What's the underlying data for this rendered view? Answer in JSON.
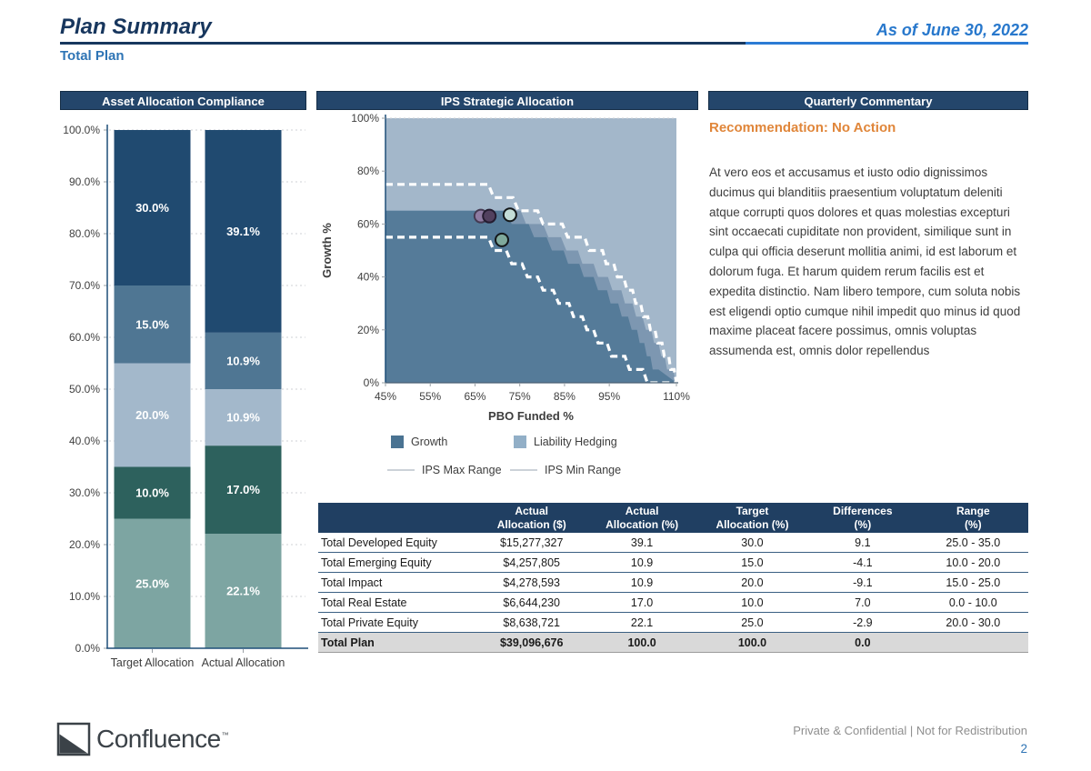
{
  "header": {
    "title": "Plan Summary",
    "subtitle": "Total Plan",
    "as_of": "As of June 30, 2022"
  },
  "panels": {
    "allocation_title": "Asset Allocation Compliance",
    "ips_title": "IPS Strategic Allocation",
    "commentary_title": "Quarterly Commentary"
  },
  "commentary": {
    "recommendation": "Recommendation: No Action",
    "body": "At vero eos et accusamus et iusto odio dignissimos ducimus qui blanditiis praesentium voluptatum deleniti atque corrupti quos dolores et quas molestias excepturi sint occaecati cupiditate non provident, similique sunt in culpa qui officia deserunt mollitia animi, id est laborum et dolorum fuga. Et harum quidem rerum facilis est et expedita distinctio. Nam libero tempore, cum soluta nobis est eligendi optio cumque nihil impedit quo minus id quod maxime placeat facere possimus, omnis voluptas assumenda est, omnis dolor repellendus"
  },
  "chart_data": [
    {
      "type": "bar",
      "title": "Asset Allocation Compliance",
      "stacked": true,
      "categories": [
        "Target Allocation",
        "Actual Allocation"
      ],
      "series": [
        {
          "color": "#7da5a2",
          "values": [
            25.0,
            22.1
          ],
          "labels": [
            "25.0%",
            "22.1%"
          ]
        },
        {
          "color": "#2d615d",
          "values": [
            10.0,
            17.0
          ],
          "labels": [
            "10.0%",
            "17.0%"
          ]
        },
        {
          "color": "#a3b8cb",
          "values": [
            20.0,
            10.9
          ],
          "labels": [
            "20.0%",
            "10.9%"
          ]
        },
        {
          "color": "#4f7693",
          "values": [
            15.0,
            10.9
          ],
          "labels": [
            "15.0%",
            "10.9%"
          ]
        },
        {
          "color": "#204a70",
          "values": [
            30.0,
            39.1
          ],
          "labels": [
            "30.0%",
            "39.1%"
          ]
        }
      ],
      "ylim": [
        0,
        100
      ],
      "ytick_labels": [
        "0.0%",
        "10.0%",
        "20.0%",
        "30.0%",
        "40.0%",
        "50.0%",
        "60.0%",
        "70.0%",
        "80.0%",
        "90.0%",
        "100.0%"
      ]
    },
    {
      "type": "area",
      "title": "IPS Strategic Allocation",
      "xlabel": "PBO Funded %",
      "ylabel": "Growth %",
      "xlim": [
        45,
        110
      ],
      "ylim": [
        0,
        100
      ],
      "xtick_values": [
        45,
        55,
        65,
        75,
        85,
        95,
        110
      ],
      "xtick_labels": [
        "45%",
        "55%",
        "65%",
        "75%",
        "85%",
        "95%",
        "110%"
      ],
      "ytick_values": [
        0,
        20,
        40,
        60,
        80,
        100
      ],
      "ytick_labels": [
        "0%",
        "20%",
        "40%",
        "60%",
        "80%",
        "100%"
      ],
      "colors": {
        "liability": "#a3b7ca",
        "mid": "#7d97b1",
        "growth": "#557b99"
      },
      "growth_boundary": [
        [
          45,
          65
        ],
        [
          72,
          65
        ],
        [
          73.2,
          60
        ],
        [
          77,
          60
        ],
        [
          78.2,
          55
        ],
        [
          81,
          55
        ],
        [
          82.2,
          50
        ],
        [
          84.8,
          50
        ],
        [
          85.8,
          45
        ],
        [
          88.3,
          45
        ],
        [
          89.3,
          40
        ],
        [
          91.5,
          40
        ],
        [
          92.5,
          35
        ],
        [
          94.5,
          35
        ],
        [
          95.3,
          30
        ],
        [
          97,
          30
        ],
        [
          97.8,
          25
        ],
        [
          99.2,
          25
        ],
        [
          100,
          20
        ],
        [
          101.2,
          20
        ],
        [
          101.8,
          15
        ],
        [
          102.8,
          15
        ],
        [
          103.4,
          10
        ],
        [
          104.2,
          10
        ],
        [
          104.7,
          5
        ],
        [
          106,
          5
        ],
        [
          110,
          0
        ]
      ],
      "mid_boundary": [
        [
          45,
          65
        ],
        [
          75.2,
          65
        ],
        [
          76.4,
          60
        ],
        [
          80.2,
          60
        ],
        [
          81.4,
          55
        ],
        [
          84.2,
          55
        ],
        [
          85.4,
          50
        ],
        [
          88,
          50
        ],
        [
          89,
          45
        ],
        [
          91.5,
          45
        ],
        [
          92.5,
          40
        ],
        [
          94.7,
          40
        ],
        [
          95.7,
          35
        ],
        [
          97.7,
          35
        ],
        [
          98.5,
          30
        ],
        [
          100.2,
          30
        ],
        [
          101,
          25
        ],
        [
          102.4,
          25
        ],
        [
          103.2,
          20
        ],
        [
          104.4,
          20
        ],
        [
          105,
          15
        ],
        [
          106,
          15
        ],
        [
          106.6,
          10
        ],
        [
          107.4,
          10
        ],
        [
          107.9,
          5
        ],
        [
          109.2,
          5
        ],
        [
          110,
          0
        ]
      ],
      "ips_max": [
        [
          45,
          75
        ],
        [
          68,
          75
        ],
        [
          69.2,
          70
        ],
        [
          73.5,
          70
        ],
        [
          74.7,
          65
        ],
        [
          79,
          65
        ],
        [
          80.2,
          60
        ],
        [
          84.5,
          60
        ],
        [
          85.7,
          55
        ],
        [
          89.5,
          55
        ],
        [
          90.5,
          50
        ],
        [
          93.5,
          50
        ],
        [
          94.3,
          45
        ],
        [
          96,
          45
        ],
        [
          96.8,
          40
        ],
        [
          98.2,
          40
        ],
        [
          99,
          35
        ],
        [
          100.2,
          35
        ],
        [
          100.9,
          30
        ],
        [
          102,
          30
        ],
        [
          102.6,
          25
        ],
        [
          103.6,
          25
        ],
        [
          104.2,
          20
        ],
        [
          105.2,
          20
        ],
        [
          105.8,
          15
        ],
        [
          106.8,
          15
        ],
        [
          107.3,
          10
        ],
        [
          108.3,
          10
        ],
        [
          108.7,
          5
        ],
        [
          109.5,
          5
        ],
        [
          110,
          0
        ]
      ],
      "ips_min": [
        [
          45,
          55
        ],
        [
          68,
          55
        ],
        [
          69.2,
          50
        ],
        [
          72,
          50
        ],
        [
          73.2,
          45
        ],
        [
          75.5,
          45
        ],
        [
          76.7,
          40
        ],
        [
          79,
          40
        ],
        [
          80.2,
          35
        ],
        [
          82.5,
          35
        ],
        [
          83.7,
          30
        ],
        [
          86,
          30
        ],
        [
          87,
          25
        ],
        [
          89,
          25
        ],
        [
          90,
          20
        ],
        [
          91.5,
          20
        ],
        [
          92.5,
          15
        ],
        [
          94.5,
          15
        ],
        [
          95.5,
          10
        ],
        [
          98.5,
          10
        ],
        [
          99.5,
          5
        ],
        [
          102.5,
          5
        ],
        [
          103.5,
          0
        ],
        [
          110,
          0
        ]
      ],
      "points": [
        {
          "x": 66.3,
          "y": 63.0,
          "fill": "#8e7ba2",
          "stroke": "#443a52"
        },
        {
          "x": 68.2,
          "y": 63.0,
          "fill": "#52415f",
          "stroke": "#241c30"
        },
        {
          "x": 72.8,
          "y": 63.5,
          "fill": "#c4ddd7",
          "stroke": "#14181a"
        },
        {
          "x": 71.0,
          "y": 54.0,
          "fill": "#7fa99c",
          "stroke": "#14181a"
        }
      ],
      "legend": [
        {
          "label": "Growth",
          "type": "swatch",
          "color": "#4a7392"
        },
        {
          "label": "Liability Hedging",
          "type": "swatch",
          "color": "#92afc7"
        },
        {
          "label": "IPS Max Range",
          "type": "line",
          "color": "#ccd2d8"
        },
        {
          "label": "IPS Min Range",
          "type": "line",
          "color": "#ccd2d8"
        }
      ],
      "legend_position": "bottom"
    }
  ],
  "table": {
    "columns": [
      "",
      "Actual\nAllocation ($)",
      "Actual\nAllocation (%)",
      "Target\nAllocation (%)",
      "Differences\n(%)",
      "Range\n(%)"
    ],
    "rows": [
      [
        "Total Developed Equity",
        "$15,277,327",
        "39.1",
        "30.0",
        "9.1",
        "25.0 - 35.0"
      ],
      [
        "Total Emerging Equity",
        "$4,257,805",
        "10.9",
        "15.0",
        "-4.1",
        "10.0 - 20.0"
      ],
      [
        "Total Impact",
        "$4,278,593",
        "10.9",
        "20.0",
        "-9.1",
        "15.0 - 25.0"
      ],
      [
        "Total Real Estate",
        "$6,644,230",
        "17.0",
        "10.0",
        "7.0",
        "0.0 - 10.0"
      ],
      [
        "Total Private Equity",
        "$8,638,721",
        "22.1",
        "25.0",
        "-2.9",
        "20.0 - 30.0"
      ]
    ],
    "total_row": [
      "Total Plan",
      "$39,096,676",
      "100.0",
      "100.0",
      "0.0",
      ""
    ]
  },
  "footer": {
    "brand": "Confluence",
    "trademark": "™",
    "disclaimer": "Private & Confidential   |   Not for Redistribution",
    "page": "2"
  }
}
